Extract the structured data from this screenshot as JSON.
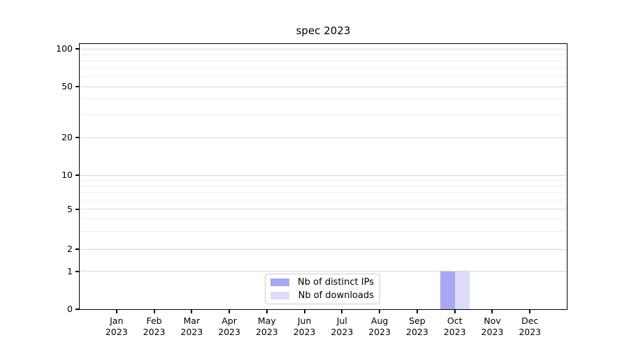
{
  "chart_data": {
    "type": "bar",
    "title": "spec 2023",
    "categories": [
      "Jan 2023",
      "Feb 2023",
      "Mar 2023",
      "Apr 2023",
      "May 2023",
      "Jun 2023",
      "Jul 2023",
      "Aug 2023",
      "Sep 2023",
      "Oct 2023",
      "Nov 2023",
      "Dec 2023"
    ],
    "x": {
      "months": [
        "Jan",
        "Feb",
        "Mar",
        "Apr",
        "May",
        "Jun",
        "Jul",
        "Aug",
        "Sep",
        "Oct",
        "Nov",
        "Dec"
      ],
      "year": "2023"
    },
    "series": [
      {
        "name": "Nb of distinct IPs",
        "color": "#a7a7f3",
        "values": [
          0,
          0,
          0,
          0,
          0,
          0,
          0,
          0,
          0,
          1,
          0,
          0
        ]
      },
      {
        "name": "Nb of downloads",
        "color": "#dcdcf9",
        "values": [
          0,
          0,
          0,
          0,
          0,
          0,
          0,
          0,
          0,
          1,
          0,
          0
        ]
      }
    ],
    "y_axis": {
      "scale": "log-like (symlog, linear below 1)",
      "major_ticks": [
        100,
        50,
        20,
        10,
        5,
        2,
        1,
        0
      ],
      "minor_gridlines": [
        90,
        80,
        70,
        60,
        40,
        30,
        9,
        8,
        7,
        6,
        4,
        3
      ],
      "range": [
        0,
        110
      ]
    },
    "grid": {
      "horizontal": true,
      "vertical": false
    },
    "legend": {
      "position": "inside bottom-center",
      "entries": [
        "Nb of distinct IPs",
        "Nb of downloads"
      ]
    },
    "colors": {
      "axis": "#000000",
      "grid_major": "#d6d6d6",
      "grid_minor": "#ededed",
      "legend_border": "#cccccc",
      "background": "#ffffff"
    }
  }
}
